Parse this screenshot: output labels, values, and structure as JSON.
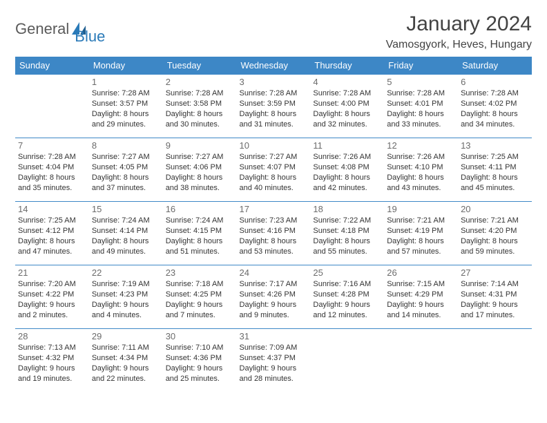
{
  "logo": {
    "text1": "General",
    "text2": "Blue"
  },
  "title": "January 2024",
  "location": "Vamosgyork, Heves, Hungary",
  "colors": {
    "header_bg": "#3d87c6",
    "header_text": "#ffffff",
    "cell_border": "#3d87c6",
    "daynum": "#6b6b6b",
    "body_text": "#333333",
    "title_text": "#434343",
    "logo_gray": "#5a5a5a",
    "logo_blue": "#2a7ab8"
  },
  "weekdays": [
    "Sunday",
    "Monday",
    "Tuesday",
    "Wednesday",
    "Thursday",
    "Friday",
    "Saturday"
  ],
  "start_offset": 1,
  "days": [
    {
      "n": "1",
      "sunrise": "7:28 AM",
      "sunset": "3:57 PM",
      "daylight": "8 hours and 29 minutes."
    },
    {
      "n": "2",
      "sunrise": "7:28 AM",
      "sunset": "3:58 PM",
      "daylight": "8 hours and 30 minutes."
    },
    {
      "n": "3",
      "sunrise": "7:28 AM",
      "sunset": "3:59 PM",
      "daylight": "8 hours and 31 minutes."
    },
    {
      "n": "4",
      "sunrise": "7:28 AM",
      "sunset": "4:00 PM",
      "daylight": "8 hours and 32 minutes."
    },
    {
      "n": "5",
      "sunrise": "7:28 AM",
      "sunset": "4:01 PM",
      "daylight": "8 hours and 33 minutes."
    },
    {
      "n": "6",
      "sunrise": "7:28 AM",
      "sunset": "4:02 PM",
      "daylight": "8 hours and 34 minutes."
    },
    {
      "n": "7",
      "sunrise": "7:28 AM",
      "sunset": "4:04 PM",
      "daylight": "8 hours and 35 minutes."
    },
    {
      "n": "8",
      "sunrise": "7:27 AM",
      "sunset": "4:05 PM",
      "daylight": "8 hours and 37 minutes."
    },
    {
      "n": "9",
      "sunrise": "7:27 AM",
      "sunset": "4:06 PM",
      "daylight": "8 hours and 38 minutes."
    },
    {
      "n": "10",
      "sunrise": "7:27 AM",
      "sunset": "4:07 PM",
      "daylight": "8 hours and 40 minutes."
    },
    {
      "n": "11",
      "sunrise": "7:26 AM",
      "sunset": "4:08 PM",
      "daylight": "8 hours and 42 minutes."
    },
    {
      "n": "12",
      "sunrise": "7:26 AM",
      "sunset": "4:10 PM",
      "daylight": "8 hours and 43 minutes."
    },
    {
      "n": "13",
      "sunrise": "7:25 AM",
      "sunset": "4:11 PM",
      "daylight": "8 hours and 45 minutes."
    },
    {
      "n": "14",
      "sunrise": "7:25 AM",
      "sunset": "4:12 PM",
      "daylight": "8 hours and 47 minutes."
    },
    {
      "n": "15",
      "sunrise": "7:24 AM",
      "sunset": "4:14 PM",
      "daylight": "8 hours and 49 minutes."
    },
    {
      "n": "16",
      "sunrise": "7:24 AM",
      "sunset": "4:15 PM",
      "daylight": "8 hours and 51 minutes."
    },
    {
      "n": "17",
      "sunrise": "7:23 AM",
      "sunset": "4:16 PM",
      "daylight": "8 hours and 53 minutes."
    },
    {
      "n": "18",
      "sunrise": "7:22 AM",
      "sunset": "4:18 PM",
      "daylight": "8 hours and 55 minutes."
    },
    {
      "n": "19",
      "sunrise": "7:21 AM",
      "sunset": "4:19 PM",
      "daylight": "8 hours and 57 minutes."
    },
    {
      "n": "20",
      "sunrise": "7:21 AM",
      "sunset": "4:20 PM",
      "daylight": "8 hours and 59 minutes."
    },
    {
      "n": "21",
      "sunrise": "7:20 AM",
      "sunset": "4:22 PM",
      "daylight": "9 hours and 2 minutes."
    },
    {
      "n": "22",
      "sunrise": "7:19 AM",
      "sunset": "4:23 PM",
      "daylight": "9 hours and 4 minutes."
    },
    {
      "n": "23",
      "sunrise": "7:18 AM",
      "sunset": "4:25 PM",
      "daylight": "9 hours and 7 minutes."
    },
    {
      "n": "24",
      "sunrise": "7:17 AM",
      "sunset": "4:26 PM",
      "daylight": "9 hours and 9 minutes."
    },
    {
      "n": "25",
      "sunrise": "7:16 AM",
      "sunset": "4:28 PM",
      "daylight": "9 hours and 12 minutes."
    },
    {
      "n": "26",
      "sunrise": "7:15 AM",
      "sunset": "4:29 PM",
      "daylight": "9 hours and 14 minutes."
    },
    {
      "n": "27",
      "sunrise": "7:14 AM",
      "sunset": "4:31 PM",
      "daylight": "9 hours and 17 minutes."
    },
    {
      "n": "28",
      "sunrise": "7:13 AM",
      "sunset": "4:32 PM",
      "daylight": "9 hours and 19 minutes."
    },
    {
      "n": "29",
      "sunrise": "7:11 AM",
      "sunset": "4:34 PM",
      "daylight": "9 hours and 22 minutes."
    },
    {
      "n": "30",
      "sunrise": "7:10 AM",
      "sunset": "4:36 PM",
      "daylight": "9 hours and 25 minutes."
    },
    {
      "n": "31",
      "sunrise": "7:09 AM",
      "sunset": "4:37 PM",
      "daylight": "9 hours and 28 minutes."
    }
  ],
  "labels": {
    "sunrise": "Sunrise:",
    "sunset": "Sunset:",
    "daylight": "Daylight:"
  }
}
